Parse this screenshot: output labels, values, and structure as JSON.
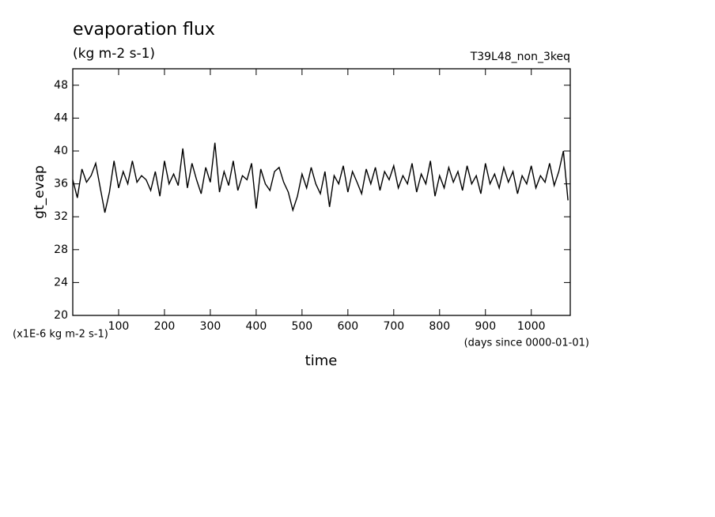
{
  "chart_data": {
    "type": "line",
    "title": "evaporation flux",
    "subtitle": "(kg m-2 s-1)",
    "annotation": "T39L48_non_3keq",
    "y_label": "gt_evap",
    "y_units": "(x1E-6 kg m-2 s-1)",
    "x_label": "time",
    "x_units": "(days since 0000-01-01)",
    "xlim": [
      0,
      1085
    ],
    "ylim": [
      20,
      50
    ],
    "xticks": [
      100,
      200,
      300,
      400,
      500,
      600,
      700,
      800,
      900,
      1000
    ],
    "yticks": [
      20,
      24,
      28,
      32,
      36,
      40,
      44,
      48
    ],
    "x": [
      0,
      10,
      20,
      30,
      40,
      50,
      60,
      70,
      80,
      90,
      100,
      110,
      120,
      130,
      140,
      150,
      160,
      170,
      180,
      190,
      200,
      210,
      220,
      230,
      240,
      250,
      260,
      270,
      280,
      290,
      300,
      310,
      320,
      330,
      340,
      350,
      360,
      370,
      380,
      390,
      400,
      410,
      420,
      430,
      440,
      450,
      460,
      470,
      480,
      490,
      500,
      510,
      520,
      530,
      540,
      550,
      560,
      570,
      580,
      590,
      600,
      610,
      620,
      630,
      640,
      650,
      660,
      670,
      680,
      690,
      700,
      710,
      720,
      730,
      740,
      750,
      760,
      770,
      780,
      790,
      800,
      810,
      820,
      830,
      840,
      850,
      860,
      870,
      880,
      890,
      900,
      910,
      920,
      930,
      940,
      950,
      960,
      970,
      980,
      990,
      1000,
      1010,
      1020,
      1030,
      1040,
      1050,
      1060,
      1070,
      1080
    ],
    "series": [
      {
        "color": "#000000",
        "values": [
          36.5,
          34.3,
          37.8,
          36.2,
          37.0,
          38.5,
          35.5,
          32.5,
          35.0,
          38.8,
          35.5,
          37.5,
          36.0,
          38.8,
          36.2,
          37.0,
          36.5,
          35.2,
          37.5,
          34.5,
          38.8,
          36.0,
          37.2,
          35.8,
          40.3,
          35.5,
          38.5,
          36.5,
          34.8,
          38.0,
          36.2,
          41.0,
          35.0,
          37.5,
          35.8,
          38.8,
          35.2,
          37.0,
          36.5,
          38.5,
          33.0,
          37.8,
          36.0,
          35.2,
          37.5,
          38.0,
          36.2,
          35.0,
          32.8,
          34.5,
          37.2,
          35.5,
          38.0,
          36.0,
          34.8,
          37.5,
          33.2,
          37.0,
          36.0,
          38.2,
          35.0,
          37.5,
          36.2,
          34.8,
          37.8,
          36.0,
          38.0,
          35.2,
          37.5,
          36.5,
          38.2,
          35.5,
          37.0,
          36.0,
          38.5,
          35.0,
          37.2,
          36.0,
          38.8,
          34.5,
          37.0,
          35.5,
          38.0,
          36.2,
          37.5,
          35.2,
          38.2,
          36.0,
          37.0,
          34.8,
          38.5,
          36.0,
          37.2,
          35.5,
          38.0,
          36.2,
          37.5,
          34.8,
          37.0,
          36.0,
          38.2,
          35.5,
          37.0,
          36.2,
          38.5,
          35.8,
          37.5,
          40.0,
          34.0
        ]
      }
    ]
  }
}
